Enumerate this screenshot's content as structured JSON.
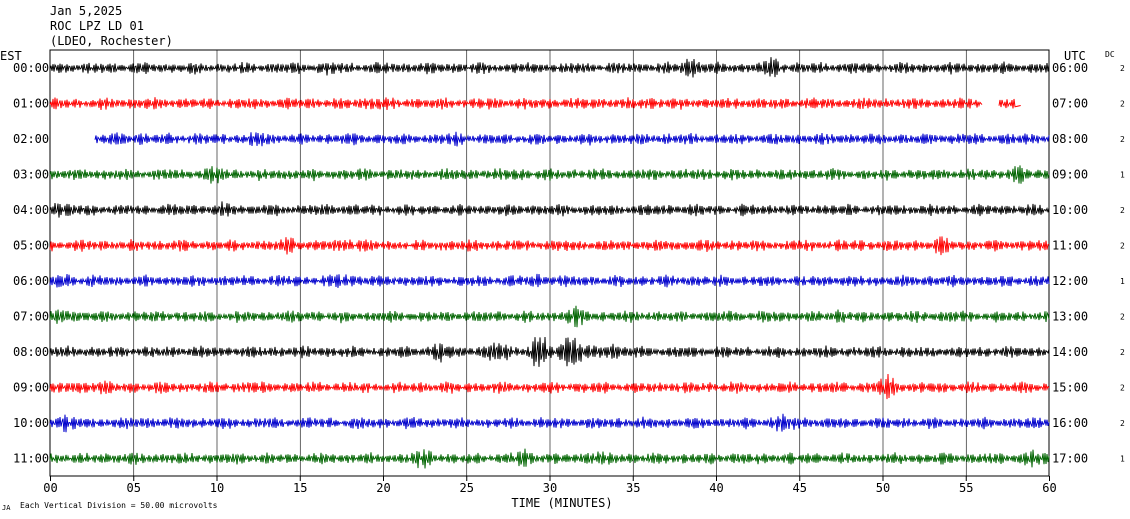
{
  "header": {
    "date": "Jan 5,2025",
    "station": "ROC LPZ LD 01",
    "network": "(LDEO, Rochester)",
    "left_zone": "EST",
    "right_zone": "UTC",
    "dc_label": "DC"
  },
  "footer": {
    "scale_text": "Each Vertical Division =   50.00 microvolts",
    "corner_mark": "JA"
  },
  "chart_data": {
    "type": "line",
    "title": "",
    "xlabel": "TIME (MINUTES)",
    "ylabel": "",
    "xlim": [
      0,
      60
    ],
    "x_ticks": [
      0,
      5,
      10,
      15,
      20,
      25,
      30,
      35,
      40,
      45,
      50,
      55,
      60
    ],
    "x_tick_labels": [
      "00",
      "05",
      "10",
      "15",
      "20",
      "25",
      "30",
      "35",
      "40",
      "45",
      "50",
      "55",
      "60"
    ],
    "grid": true,
    "grid_vertical_interval_minutes": 5,
    "trace_colors": [
      "#000000",
      "#ff0000",
      "#0000cc",
      "#006400"
    ],
    "rows": [
      {
        "est": "00:00",
        "utc": "06:00",
        "dc": "2",
        "color": "#000000",
        "start_min": 0,
        "end_min": 60,
        "events": [
          {
            "t": 38.5,
            "amp": 1.6
          },
          {
            "t": 43.5,
            "amp": 1.5
          },
          {
            "t": 16.5,
            "amp": 1.2
          }
        ]
      },
      {
        "est": "01:00",
        "utc": "07:00",
        "dc": "2",
        "color": "#ff0000",
        "start_min": 0,
        "end_min": 56,
        "extra_segment": [
          57,
          58
        ],
        "events": [
          {
            "t": 19.5,
            "amp": 1.3
          },
          {
            "t": 36,
            "amp": 1.2
          }
        ]
      },
      {
        "est": "02:00",
        "utc": "08:00",
        "dc": "2",
        "color": "#0000cc",
        "start_min": 2.7,
        "end_min": 60,
        "events": [
          {
            "t": 5,
            "amp": 1.2
          },
          {
            "t": 12.5,
            "amp": 1.3
          },
          {
            "t": 24.3,
            "amp": 1.2
          }
        ]
      },
      {
        "est": "03:00",
        "utc": "09:00",
        "dc": "1",
        "color": "#006400",
        "start_min": 0,
        "end_min": 60,
        "events": [
          {
            "t": 10,
            "amp": 1.3
          },
          {
            "t": 28,
            "amp": 1.2
          },
          {
            "t": 58,
            "amp": 1.3
          }
        ]
      },
      {
        "est": "04:00",
        "utc": "10:00",
        "dc": "2",
        "color": "#000000",
        "start_min": 0,
        "end_min": 60,
        "events": [
          {
            "t": 0.5,
            "amp": 1.5
          },
          {
            "t": 10.5,
            "amp": 1.2
          }
        ]
      },
      {
        "est": "05:00",
        "utc": "11:00",
        "dc": "2",
        "color": "#ff0000",
        "start_min": 0,
        "end_min": 60,
        "events": [
          {
            "t": 14.5,
            "amp": 1.3
          },
          {
            "t": 18,
            "amp": 1.3
          },
          {
            "t": 53.5,
            "amp": 1.3
          }
        ]
      },
      {
        "est": "06:00",
        "utc": "12:00",
        "dc": "1",
        "color": "#0000cc",
        "start_min": 0,
        "end_min": 60,
        "events": [
          {
            "t": 0.7,
            "amp": 1.3
          },
          {
            "t": 17.5,
            "amp": 1.3
          },
          {
            "t": 29.5,
            "amp": 1.2
          }
        ]
      },
      {
        "est": "07:00",
        "utc": "13:00",
        "dc": "2",
        "color": "#006400",
        "start_min": 0,
        "end_min": 60,
        "events": [
          {
            "t": 1,
            "amp": 1.3
          },
          {
            "t": 31.5,
            "amp": 1.4
          },
          {
            "t": 47.5,
            "amp": 1.2
          }
        ]
      },
      {
        "est": "08:00",
        "utc": "14:00",
        "dc": "2",
        "color": "#000000",
        "start_min": 0,
        "end_min": 60,
        "events": [
          {
            "t": 23.5,
            "amp": 1.4
          },
          {
            "t": 29.5,
            "amp": 2.2
          },
          {
            "t": 31.3,
            "amp": 2.4
          },
          {
            "t": 33.5,
            "amp": 1.6
          },
          {
            "t": 27,
            "amp": 1.6
          }
        ]
      },
      {
        "est": "09:00",
        "utc": "15:00",
        "dc": "2",
        "color": "#ff0000",
        "start_min": 0,
        "end_min": 60,
        "events": [
          {
            "t": 3,
            "amp": 1.3
          },
          {
            "t": 12,
            "amp": 1.2
          },
          {
            "t": 50.3,
            "amp": 1.7
          }
        ]
      },
      {
        "est": "10:00",
        "utc": "16:00",
        "dc": "2",
        "color": "#0000cc",
        "start_min": 0,
        "end_min": 60,
        "events": [
          {
            "t": 0.7,
            "amp": 1.4
          },
          {
            "t": 44,
            "amp": 1.4
          }
        ]
      },
      {
        "est": "11:00",
        "utc": "17:00",
        "dc": "1",
        "color": "#006400",
        "start_min": 0,
        "end_min": 60,
        "events": [
          {
            "t": 22.5,
            "amp": 1.4
          },
          {
            "t": 28.5,
            "amp": 1.4
          },
          {
            "t": 32.5,
            "amp": 1.4
          },
          {
            "t": 59,
            "amp": 1.3
          }
        ]
      }
    ]
  }
}
